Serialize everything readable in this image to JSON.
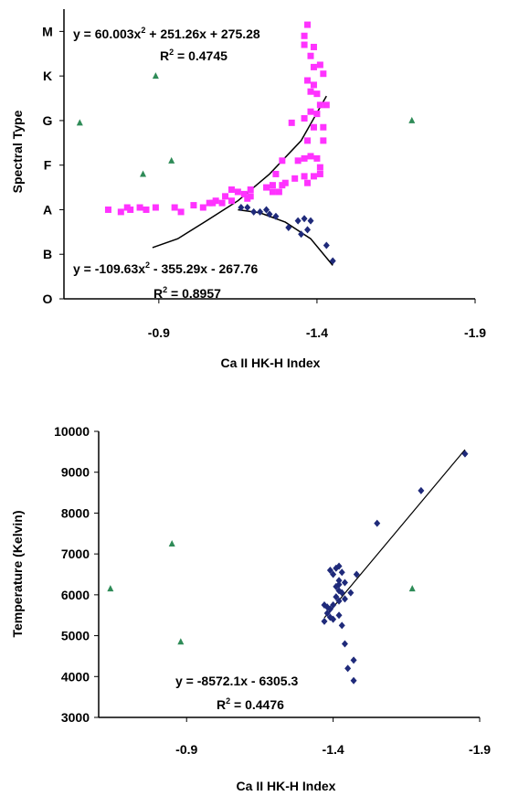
{
  "chart_data": [
    {
      "type": "scatter",
      "title": "",
      "xlabel": "Ca II HK-H Index",
      "ylabel": "Spectral Type",
      "xlim": [
        -0.6,
        -1.9
      ],
      "x_reversed": true,
      "x_ticks": [
        "-0.9",
        "-1.4",
        "-1.9"
      ],
      "x_tick_values": [
        -0.9,
        -1.4,
        -1.9
      ],
      "y_categories": [
        "O",
        "B",
        "A",
        "F",
        "G",
        "K",
        "M"
      ],
      "ylim": [
        0,
        6.5
      ],
      "grid": false,
      "legend": "none",
      "series": [
        {
          "marker": "triangle",
          "color": "#2e8b57",
          "points": [
            [
              -0.65,
              3.95
            ],
            [
              -0.94,
              3.1
            ],
            [
              -0.89,
              5.0
            ],
            [
              -0.85,
              2.8
            ],
            [
              -1.7,
              4.0
            ]
          ]
        },
        {
          "marker": "square",
          "color": "#ff33ff",
          "points": [
            [
              -1.37,
              6.15
            ],
            [
              -1.39,
              5.65
            ],
            [
              -1.36,
              5.9
            ],
            [
              -1.38,
              5.45
            ],
            [
              -1.36,
              5.7
            ],
            [
              -1.39,
              5.2
            ],
            [
              -1.41,
              5.25
            ],
            [
              -1.42,
              5.05
            ],
            [
              -1.37,
              4.9
            ],
            [
              -1.39,
              4.8
            ],
            [
              -1.38,
              4.65
            ],
            [
              -1.4,
              4.6
            ],
            [
              -1.41,
              4.35
            ],
            [
              -1.43,
              4.35
            ],
            [
              -1.4,
              4.15
            ],
            [
              -1.38,
              4.2
            ],
            [
              -1.36,
              4.05
            ],
            [
              -1.39,
              3.85
            ],
            [
              -1.42,
              3.85
            ],
            [
              -1.37,
              3.55
            ],
            [
              -1.42,
              3.55
            ],
            [
              -1.4,
              3.15
            ],
            [
              -1.38,
              3.2
            ],
            [
              -1.36,
              3.15
            ],
            [
              -1.34,
              3.1
            ],
            [
              -1.41,
              2.95
            ],
            [
              -1.32,
              3.95
            ],
            [
              -1.29,
              3.1
            ],
            [
              -1.27,
              2.8
            ],
            [
              -1.29,
              2.55
            ],
            [
              -1.26,
              2.55
            ],
            [
              -1.41,
              2.8
            ],
            [
              -1.39,
              2.75
            ],
            [
              -1.36,
              2.75
            ],
            [
              -1.37,
              2.6
            ],
            [
              -1.28,
              2.4
            ],
            [
              -1.24,
              2.5
            ],
            [
              -1.26,
              2.4
            ],
            [
              -1.3,
              2.6
            ],
            [
              -1.33,
              2.7
            ],
            [
              -1.19,
              2.45
            ],
            [
              -1.18,
              2.25
            ],
            [
              -1.19,
              2.3
            ],
            [
              -1.17,
              2.35
            ],
            [
              -1.15,
              2.4
            ],
            [
              -1.13,
              2.45
            ],
            [
              -1.11,
              2.3
            ],
            [
              -1.13,
              2.2
            ],
            [
              -1.1,
              2.15
            ],
            [
              -1.08,
              2.2
            ],
            [
              -1.07,
              2.15
            ],
            [
              -1.06,
              2.15
            ],
            [
              -1.04,
              2.05
            ],
            [
              -1.01,
              2.1
            ],
            [
              -0.97,
              1.95
            ],
            [
              -0.95,
              2.05
            ],
            [
              -0.89,
              2.05
            ],
            [
              -0.86,
              2.0
            ],
            [
              -0.84,
              2.05
            ],
            [
              -0.81,
              2.0
            ],
            [
              -0.8,
              2.05
            ],
            [
              -0.78,
              1.95
            ],
            [
              -0.74,
              2.0
            ]
          ]
        },
        {
          "marker": "diamond",
          "color": "#1f2a7a",
          "points": [
            [
              -1.45,
              0.85
            ],
            [
              -1.43,
              1.2
            ],
            [
              -1.38,
              1.75
            ],
            [
              -1.36,
              1.8
            ],
            [
              -1.37,
              1.55
            ],
            [
              -1.34,
              1.75
            ],
            [
              -1.31,
              1.6
            ],
            [
              -1.27,
              1.85
            ],
            [
              -1.25,
              1.9
            ],
            [
              -1.24,
              2.0
            ],
            [
              -1.22,
              1.95
            ],
            [
              -1.2,
              1.95
            ],
            [
              -1.18,
              2.05
            ],
            [
              -1.16,
              2.05
            ],
            [
              -1.35,
              1.45
            ]
          ]
        }
      ],
      "trendlines": [
        {
          "equation": "y = 60.003x",
          "superscript": "2",
          "rest": " + 251.26x + 275.28",
          "r2_label": "R",
          "r2_value": " = 0.4745"
        },
        {
          "equation": "y = -109.63x",
          "superscript": "2",
          "rest": " - 355.29x - 267.76",
          "r2_label": "R",
          "r2_value": " = 0.8957"
        }
      ]
    },
    {
      "type": "scatter",
      "title": "",
      "xlabel": "Ca II HK-H Index",
      "ylabel": "Temperature (Kelvin)",
      "xlim": [
        -0.6,
        -1.9
      ],
      "x_reversed": true,
      "x_ticks": [
        "-0.9",
        "-1.4",
        "-1.9"
      ],
      "x_tick_values": [
        -0.9,
        -1.4,
        -1.9
      ],
      "ylim": [
        3000,
        10000
      ],
      "y_ticks": [
        "3000",
        "4000",
        "5000",
        "6000",
        "7000",
        "8000",
        "9000",
        "10000"
      ],
      "y_tick_values": [
        3000,
        4000,
        5000,
        6000,
        7000,
        8000,
        9000,
        10000
      ],
      "grid": false,
      "legend": "none",
      "series": [
        {
          "marker": "triangle",
          "color": "#2e8b57",
          "points": [
            [
              -0.64,
              6150
            ],
            [
              -0.88,
              4850
            ],
            [
              -0.85,
              7250
            ],
            [
              -1.67,
              6150
            ]
          ]
        },
        {
          "marker": "diamond",
          "color": "#1f2a7a",
          "points": [
            [
              -1.85,
              9450
            ],
            [
              -1.7,
              8550
            ],
            [
              -1.55,
              7750
            ],
            [
              -1.48,
              6500
            ],
            [
              -1.46,
              6050
            ],
            [
              -1.44,
              6300
            ],
            [
              -1.42,
              6250
            ],
            [
              -1.41,
              6650
            ],
            [
              -1.4,
              6500
            ],
            [
              -1.43,
              6550
            ],
            [
              -1.42,
              6350
            ],
            [
              -1.41,
              6200
            ],
            [
              -1.42,
              6100
            ],
            [
              -1.43,
              6050
            ],
            [
              -1.41,
              5950
            ],
            [
              -1.44,
              5900
            ],
            [
              -1.42,
              5850
            ],
            [
              -1.4,
              5750
            ],
            [
              -1.39,
              5650
            ],
            [
              -1.38,
              5550
            ],
            [
              -1.39,
              5450
            ],
            [
              -1.4,
              5400
            ],
            [
              -1.37,
              5350
            ],
            [
              -1.42,
              5500
            ],
            [
              -1.37,
              5750
            ],
            [
              -1.43,
              5250
            ],
            [
              -1.42,
              6700
            ],
            [
              -1.39,
              6600
            ],
            [
              -1.44,
              4800
            ],
            [
              -1.45,
              4200
            ],
            [
              -1.47,
              4400
            ],
            [
              -1.47,
              3900
            ],
            [
              -1.38,
              5700
            ]
          ]
        }
      ],
      "trendline": {
        "x_range": [
          -1.37,
          -1.85
        ],
        "equation": "y = -8572.1x - 6305.3",
        "r2_label": "R",
        "r2_sup": "2",
        "r2_value": " = 0.4476"
      }
    }
  ]
}
